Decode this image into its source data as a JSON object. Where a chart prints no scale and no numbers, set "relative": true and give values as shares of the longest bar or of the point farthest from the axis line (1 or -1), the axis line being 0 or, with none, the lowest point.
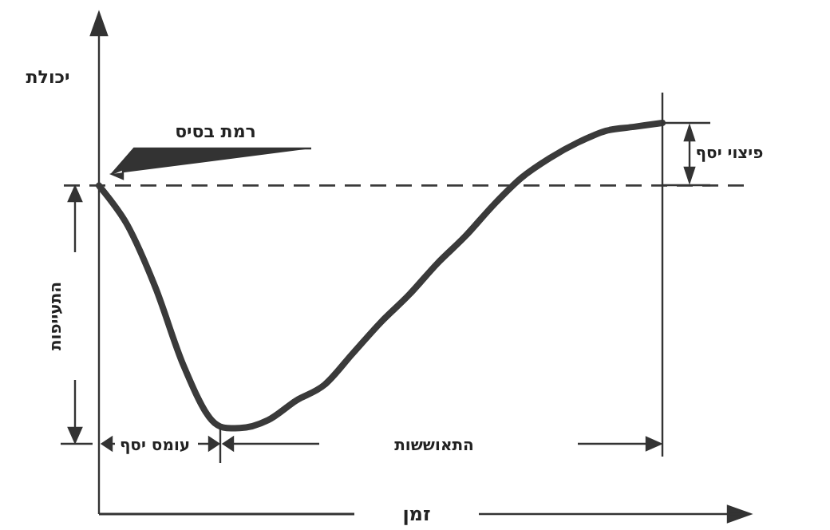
{
  "chart_data": {
    "type": "line",
    "relative": true,
    "xlabel": "זמן",
    "ylabel": "יכולת",
    "categories": [
      null,
      null,
      null,
      null,
      null,
      null,
      null,
      null,
      null,
      null,
      null,
      null,
      null,
      null,
      null,
      null,
      null,
      null,
      null,
      null,
      null
    ],
    "series": [
      {
        "color": "#3a3a3a",
        "values": [
          0.84,
          0.74,
          0.58,
          0.38,
          0.24,
          0.22,
          0.24,
          0.29,
          0.33,
          0.41,
          0.49,
          0.56,
          0.64,
          0.71,
          0.79,
          0.86,
          0.91,
          0.95,
          0.98,
          0.99,
          1
        ]
      }
    ],
    "ref_lines": [
      {
        "axis": "y",
        "value": 0.84,
        "label": "רמת בסיס",
        "line_style": "dashed",
        "color": "#3a3a3a"
      }
    ],
    "annotations": [
      "פיצוי יסף",
      "התעייפות",
      "עומס יסף",
      "התאוששות"
    ]
  }
}
